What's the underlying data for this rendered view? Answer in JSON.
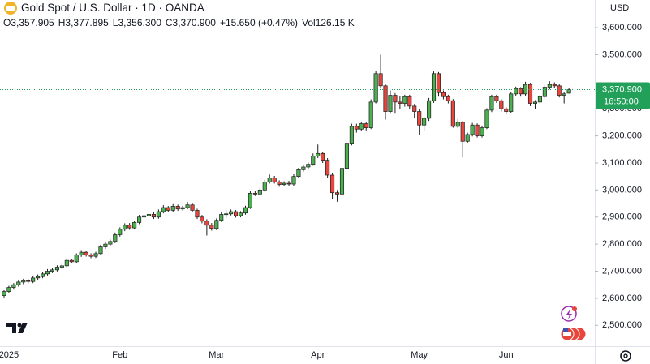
{
  "chart_data": {
    "type": "candlestick",
    "header": {
      "symbol": "Gold Spot / U.S. Dollar · 1D · OANDA",
      "o_label": "O",
      "o": "3,357.905",
      "h_label": "H",
      "h": "3,377.895",
      "l_label": "L",
      "l": "3,356.300",
      "c_label": "C",
      "c": "3,370.900",
      "change": "+15.650 (+0.47%)",
      "vol_label": "Vol",
      "vol": "126.15 K"
    },
    "currency": "USD",
    "last_price_label": "3,370.900",
    "countdown": "16:50:00",
    "up_color": "#4caf50",
    "down_color": "#e8453c",
    "outline_color": "#1e1e1e",
    "price_line_color": "#22a05a",
    "ylim": [
      2423,
      3702
    ],
    "yticks": [
      {
        "value": 2500,
        "label": "2,500.000"
      },
      {
        "value": 2600,
        "label": "2,600.000"
      },
      {
        "value": 2700,
        "label": "2,700.000"
      },
      {
        "value": 2800,
        "label": "2,800.000"
      },
      {
        "value": 2900,
        "label": "2,900.000"
      },
      {
        "value": 3000,
        "label": "3,000.000"
      },
      {
        "value": 3100,
        "label": "3,100.000"
      },
      {
        "value": 3200,
        "label": "3,200.000"
      },
      {
        "value": 3300,
        "label": "3,300.000"
      },
      {
        "value": 3500,
        "label": "3,500.000"
      },
      {
        "value": 3600,
        "label": "3,600.000"
      }
    ],
    "categories": [
      null,
      "2025",
      null,
      null,
      null,
      null,
      null,
      null,
      null,
      null,
      null,
      null,
      null,
      null,
      null,
      null,
      null,
      null,
      null,
      null,
      null,
      null,
      null,
      null,
      "Feb",
      null,
      null,
      null,
      null,
      null,
      null,
      null,
      null,
      null,
      null,
      null,
      null,
      null,
      null,
      null,
      null,
      null,
      null,
      null,
      "Mar",
      null,
      null,
      null,
      null,
      null,
      null,
      null,
      null,
      null,
      null,
      null,
      null,
      null,
      null,
      null,
      null,
      null,
      null,
      null,
      null,
      "Apr",
      null,
      null,
      null,
      null,
      null,
      null,
      null,
      null,
      null,
      null,
      null,
      null,
      null,
      null,
      null,
      null,
      null,
      null,
      null,
      null,
      "May",
      null,
      null,
      null,
      null,
      null,
      null,
      null,
      null,
      null,
      null,
      null,
      null,
      null,
      null,
      null,
      null,
      null,
      "Jun",
      null,
      null,
      null,
      null,
      null,
      null,
      null,
      null,
      null,
      null,
      null,
      null,
      null
    ],
    "open": [
      2610,
      2625,
      2640,
      2650,
      2660,
      2665,
      2662,
      2675,
      2680,
      2690,
      2700,
      2705,
      2715,
      2720,
      2740,
      2735,
      2760,
      2770,
      2760,
      2755,
      2765,
      2790,
      2800,
      2810,
      2835,
      2855,
      2870,
      2860,
      2880,
      2900,
      2905,
      2910,
      2900,
      2920,
      2935,
      2925,
      2940,
      2930,
      2935,
      2945,
      2925,
      2900,
      2885,
      2870,
      2858,
      2888,
      2910,
      2912,
      2920,
      2905,
      2915,
      2935,
      2988,
      2985,
      3000,
      3030,
      3045,
      3030,
      3020,
      3025,
      3022,
      3050,
      3075,
      3085,
      3095,
      3125,
      3135,
      3110,
      3055,
      2990,
      2985,
      3080,
      3170,
      3235,
      3225,
      3245,
      3230,
      3325,
      3430,
      3385,
      3290,
      3350,
      3325,
      3320,
      3345,
      3310,
      3290,
      3240,
      3265,
      3330,
      3430,
      3360,
      3345,
      3330,
      3235,
      3250,
      3180,
      3205,
      3240,
      3200,
      3230,
      3295,
      3345,
      3330,
      3300,
      3290,
      3355,
      3375,
      3355,
      3390,
      3320,
      3325,
      3345,
      3380,
      3390,
      3385,
      3350,
      3357.905
    ],
    "high": [
      2630,
      2646,
      2656,
      2668,
      2672,
      2671,
      2681,
      2688,
      2697,
      2708,
      2712,
      2722,
      2728,
      2748,
      2746,
      2766,
      2778,
      2776,
      2766,
      2772,
      2798,
      2808,
      2817,
      2843,
      2862,
      2877,
      2878,
      2887,
      2908,
      2914,
      2942,
      2918,
      2928,
      2944,
      2941,
      2948,
      2946,
      2942,
      2956,
      2951,
      2931,
      2908,
      2892,
      2878,
      2895,
      2918,
      2925,
      2928,
      2926,
      2922,
      2942,
      2995,
      2998,
      3006,
      3038,
      3057,
      3052,
      3036,
      3032,
      3034,
      3058,
      3082,
      3092,
      3102,
      3135,
      3168,
      3142,
      3118,
      3062,
      3000,
      3090,
      3178,
      3245,
      3245,
      3252,
      3252,
      3335,
      3440,
      3500,
      3390,
      3368,
      3358,
      3348,
      3352,
      3352,
      3318,
      3298,
      3270,
      3340,
      3438,
      3436,
      3368,
      3352,
      3336,
      3262,
      3256,
      3212,
      3248,
      3246,
      3238,
      3302,
      3352,
      3352,
      3336,
      3306,
      3362,
      3382,
      3380,
      3400,
      3396,
      3332,
      3352,
      3388,
      3402,
      3398,
      3392,
      3362,
      3377.895
    ],
    "low": [
      2603,
      2618,
      2632,
      2643,
      2652,
      2655,
      2656,
      2668,
      2674,
      2684,
      2693,
      2699,
      2708,
      2714,
      2729,
      2730,
      2753,
      2754,
      2748,
      2749,
      2760,
      2783,
      2794,
      2804,
      2828,
      2848,
      2853,
      2854,
      2874,
      2893,
      2898,
      2893,
      2894,
      2914,
      2918,
      2919,
      2923,
      2924,
      2929,
      2918,
      2893,
      2877,
      2832,
      2850,
      2852,
      2882,
      2897,
      2906,
      2898,
      2899,
      2909,
      2930,
      2978,
      2980,
      2994,
      3024,
      3024,
      3012,
      3014,
      3016,
      3016,
      3044,
      3068,
      3078,
      3090,
      3118,
      3100,
      3045,
      2968,
      2957,
      2980,
      3075,
      3165,
      3212,
      3218,
      3220,
      3225,
      3320,
      3375,
      3260,
      3282,
      3282,
      3300,
      3308,
      3300,
      3265,
      3205,
      3220,
      3255,
      3322,
      3345,
      3335,
      3320,
      3230,
      3228,
      3120,
      3172,
      3198,
      3194,
      3194,
      3225,
      3288,
      3322,
      3290,
      3280,
      3284,
      3348,
      3345,
      3348,
      3310,
      3300,
      3318,
      3338,
      3372,
      3376,
      3342,
      3320,
      3356.3
    ],
    "close": [
      2625,
      2640,
      2650,
      2660,
      2665,
      2662,
      2675,
      2680,
      2690,
      2700,
      2705,
      2715,
      2720,
      2740,
      2735,
      2760,
      2770,
      2760,
      2755,
      2765,
      2790,
      2800,
      2810,
      2835,
      2855,
      2870,
      2860,
      2880,
      2900,
      2905,
      2910,
      2900,
      2920,
      2935,
      2925,
      2940,
      2930,
      2935,
      2945,
      2925,
      2900,
      2885,
      2870,
      2858,
      2888,
      2910,
      2912,
      2920,
      2905,
      2915,
      2935,
      2988,
      2985,
      3000,
      3030,
      3045,
      3030,
      3020,
      3025,
      3022,
      3050,
      3075,
      3085,
      3095,
      3125,
      3135,
      3110,
      3055,
      2990,
      2985,
      3080,
      3170,
      3235,
      3225,
      3245,
      3230,
      3325,
      3430,
      3385,
      3290,
      3350,
      3325,
      3320,
      3345,
      3310,
      3290,
      3240,
      3265,
      3330,
      3430,
      3360,
      3345,
      3330,
      3235,
      3250,
      3180,
      3205,
      3240,
      3200,
      3230,
      3295,
      3345,
      3330,
      3300,
      3290,
      3355,
      3375,
      3355,
      3390,
      3320,
      3325,
      3345,
      3380,
      3390,
      3385,
      3350,
      3355.25,
      3370.9
    ]
  }
}
